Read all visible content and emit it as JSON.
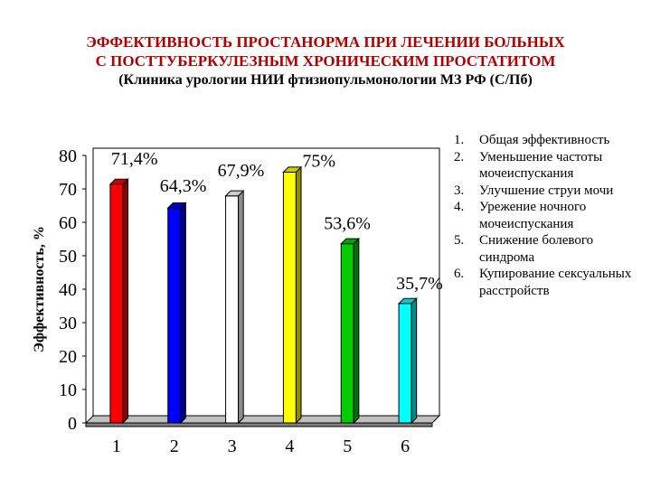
{
  "title": {
    "line1": "ЭФФЕКТИВНОСТЬ ПРОСТАНОРМА ПРИ ЛЕЧЕНИИ БОЛЬНЫХ",
    "line2": "С ПОСТТУБЕРКУЛЕЗНЫМ ХРОНИЧЕСКИМ ПРОСТАТИТОМ",
    "line3": "(Клиника урологии НИИ фтизиопульмонологии МЗ РФ (С/Пб)"
  },
  "legend": {
    "items": [
      {
        "num": "1.",
        "text": "Общая эффективность"
      },
      {
        "num": "2.",
        "text": "Уменьшение частоты мочеиспускания"
      },
      {
        "num": "3.",
        "text": "Улучшение струи мочи"
      },
      {
        "num": "4.",
        "text": "Урежение ночного мочеиспускания"
      },
      {
        "num": "5.",
        "text": "Снижение болевого синдрома"
      },
      {
        "num": "6.",
        "text": "Купирование сексуальных расстройств"
      }
    ]
  },
  "chart_data": {
    "type": "bar",
    "categories": [
      "1",
      "2",
      "3",
      "4",
      "5",
      "6"
    ],
    "values": [
      71.4,
      64.3,
      67.9,
      75,
      53.6,
      35.7
    ],
    "data_labels": [
      "71,4%",
      "64,3%",
      "67,9%",
      "75%",
      "53,6%",
      "35,7%"
    ],
    "colors": [
      "#ff0000",
      "#0000ff",
      "#ffffff",
      "#ffff00",
      "#00cc00",
      "#00ffff"
    ],
    "ylabel": "Эффективность, %",
    "xlabel": "",
    "ylim": [
      0,
      80
    ],
    "yticks": [
      "0",
      "10",
      "20",
      "30",
      "40",
      "50",
      "60",
      "70",
      "80"
    ],
    "grid": false,
    "style": "3d"
  }
}
